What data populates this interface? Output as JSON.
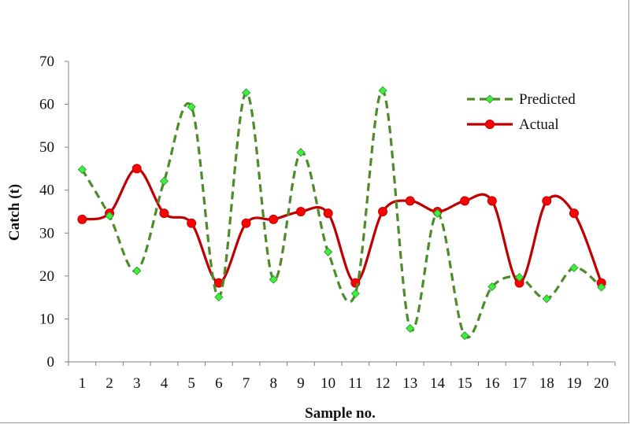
{
  "chart_data": {
    "type": "line",
    "xlabel": "Sample no.",
    "ylabel": "Catch (t)",
    "categories": [
      "1",
      "2",
      "3",
      "4",
      "5",
      "6",
      "7",
      "8",
      "9",
      "10",
      "11",
      "12",
      "13",
      "14",
      "15",
      "16",
      "17",
      "18",
      "19",
      "20"
    ],
    "ylim": [
      0,
      70
    ],
    "yticks": [
      0,
      10,
      20,
      30,
      40,
      50,
      60,
      70
    ],
    "legend_position": "top-right",
    "series": [
      {
        "name": "Predicted",
        "color": "#4e8b2a",
        "marker_color": "#3cf03c",
        "line_style": "dashed",
        "marker": "diamond",
        "values": [
          44.8,
          34.0,
          21.2,
          42.1,
          59.4,
          15.1,
          62.7,
          19.2,
          48.8,
          25.6,
          15.9,
          63.2,
          7.8,
          34.6,
          6.1,
          17.5,
          19.7,
          14.7,
          21.9,
          17.4
        ]
      },
      {
        "name": "Actual",
        "color": "#c00000",
        "marker_color": "#ff0000",
        "line_style": "solid",
        "marker": "circle",
        "values": [
          33.2,
          34.6,
          45.0,
          34.6,
          32.3,
          18.4,
          32.3,
          33.2,
          35.0,
          34.6,
          18.4,
          35.0,
          37.5,
          35.0,
          37.5,
          37.5,
          18.4,
          37.5,
          34.6,
          18.4
        ]
      }
    ]
  }
}
